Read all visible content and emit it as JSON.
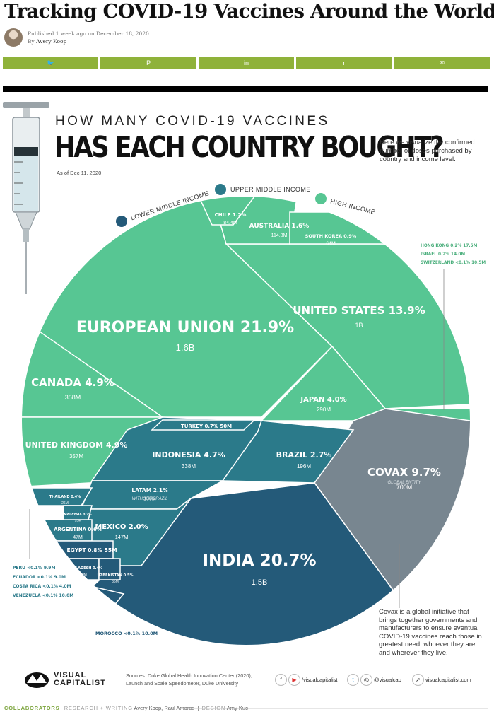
{
  "article": {
    "title": "Tracking COVID-19 Vaccines Around the World",
    "published": "Published 1 week ago on December 18, 2020",
    "byline_prefix": "By",
    "author": "Avery Koop"
  },
  "share_buttons": [
    {
      "name": "twitter",
      "glyph": "🐦"
    },
    {
      "name": "pinterest",
      "glyph": "P"
    },
    {
      "name": "linkedin",
      "glyph": "in"
    },
    {
      "name": "reddit",
      "glyph": "r"
    },
    {
      "name": "email",
      "glyph": "✉"
    }
  ],
  "infographic": {
    "kicker": "HOW MANY COVID-19 VACCINES",
    "headline": "HAS EACH COUNTRY BOUGHT?",
    "intro": "Here we visualize the confirmed number of doses purchased by country and income level.",
    "as_of": "As of Dec 11, 2020",
    "covax_note": "Covax is a global initiative that brings together governments and manufacturers to ensure eventual COVID-19 vaccines reach those in greatest need, whoever they are and wherever they live."
  },
  "colors": {
    "high_income": "#57c693",
    "upper_middle": "#2b7a8a",
    "lower_middle": "#245a79",
    "covax": "#788690",
    "share": "#8fb23a"
  },
  "chart_data": {
    "type": "voronoi-treemap",
    "title": "HAS EACH COUNTRY BOUGHT?",
    "legend": [
      {
        "label": "LOWER MIDDLE INCOME",
        "color": "#245a79"
      },
      {
        "label": "UPPER MIDDLE INCOME",
        "color": "#2b7a8a"
      },
      {
        "label": "HIGH INCOME",
        "color": "#57c693"
      }
    ],
    "cells": [
      {
        "name": "EUROPEAN UNION",
        "pct": "21.9%",
        "doses": "1.6B",
        "group": "high"
      },
      {
        "name": "UNITED STATES",
        "pct": "13.9%",
        "doses": "1B",
        "group": "high"
      },
      {
        "name": "CANADA",
        "pct": "4.9%",
        "doses": "358M",
        "group": "high"
      },
      {
        "name": "UNITED KINGDOM",
        "pct": "4.9%",
        "doses": "357M",
        "group": "high"
      },
      {
        "name": "JAPAN",
        "pct": "4.0%",
        "doses": "290M",
        "group": "high"
      },
      {
        "name": "AUSTRALIA",
        "pct": "1.6%",
        "doses": "114.8M",
        "group": "high"
      },
      {
        "name": "CHILE",
        "pct": "1.2%",
        "doses": "84.4M",
        "group": "high"
      },
      {
        "name": "SOUTH KOREA",
        "pct": "0.9%",
        "doses": "64M",
        "group": "high"
      },
      {
        "name": "HONG KONG",
        "pct": "0.2%",
        "doses": "17.5M",
        "group": "high"
      },
      {
        "name": "ISRAEL",
        "pct": "0.2%",
        "doses": "14.0M",
        "group": "high"
      },
      {
        "name": "SWITZERLAND",
        "pct": "<0.1%",
        "doses": "10.5M",
        "group": "high"
      },
      {
        "name": "COVAX",
        "pct": "9.7%",
        "doses": "700M",
        "group": "covax",
        "sub": "GLOBAL ENTITY"
      },
      {
        "name": "INDIA",
        "pct": "20.7%",
        "doses": "1.5B",
        "group": "lower"
      },
      {
        "name": "INDONESIA",
        "pct": "4.7%",
        "doses": "338M",
        "group": "upper"
      },
      {
        "name": "BRAZIL",
        "pct": "2.7%",
        "doses": "196M",
        "group": "upper"
      },
      {
        "name": "TURKEY",
        "pct": "0.7%",
        "doses": "50M",
        "group": "upper"
      },
      {
        "name": "LATAM",
        "pct": "2.1%",
        "doses": "150M",
        "group": "upper",
        "sub": "WITHOUT BRAZIL"
      },
      {
        "name": "MEXICO",
        "pct": "2.0%",
        "doses": "147M",
        "group": "upper"
      },
      {
        "name": "ARGENTINA",
        "pct": "0.6%",
        "doses": "47M",
        "group": "upper"
      },
      {
        "name": "EGYPT",
        "pct": "0.8%",
        "doses": "55M",
        "group": "lower"
      },
      {
        "name": "THAILAND",
        "pct": "0.4%",
        "doses": "26M",
        "group": "upper"
      },
      {
        "name": "MALAYSIA",
        "pct": "0.2%",
        "doses": "13M",
        "group": "upper"
      },
      {
        "name": "BANGLADESH",
        "pct": "0.4%",
        "doses": "30M",
        "group": "lower"
      },
      {
        "name": "UZBEKISTAN",
        "pct": "0.5%",
        "doses": "35M",
        "group": "lower"
      },
      {
        "name": "PERU",
        "pct": "<0.1%",
        "doses": "9.9M",
        "group": "upper"
      },
      {
        "name": "ECUADOR",
        "pct": "<0.1%",
        "doses": "9.0M",
        "group": "upper"
      },
      {
        "name": "COSTA RICA",
        "pct": "<0.1%",
        "doses": "4.0M",
        "group": "upper"
      },
      {
        "name": "VENEZUELA",
        "pct": "<0.1%",
        "doses": "10.0M",
        "group": "upper"
      },
      {
        "name": "MOROCCO",
        "pct": "<0.1%",
        "doses": "10.0M",
        "group": "lower"
      }
    ]
  },
  "footer": {
    "brand_line1": "VISUAL",
    "brand_line2": "CAPITALIST",
    "sources_line1": "Sources: Duke Global Health Innovation Center (2020),",
    "sources_line2": "Launch and Scale Speedometer, Duke University",
    "facebook_youtube": "/visualcapitalist",
    "twitter_instagram": "@visualcap",
    "website": "visualcapitalist.com",
    "collaborators_label": "COLLABORATORS",
    "research_label": "RESEARCH + WRITING",
    "research_names": "Avery Koop, Raul Amoros",
    "design_label": "DESIGN",
    "design_names": "Amy Kuo"
  }
}
